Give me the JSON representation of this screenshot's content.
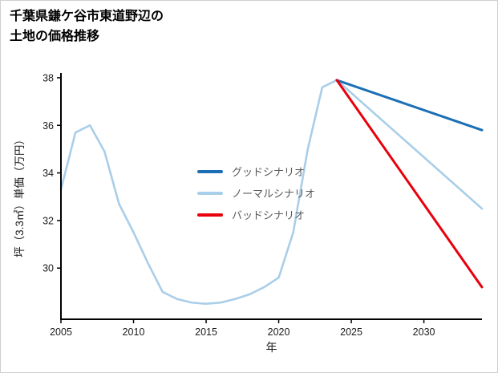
{
  "page": {
    "title_lines": [
      "千葉県鎌ケ谷市東道野辺の",
      "土地の価格推移"
    ]
  },
  "chart_data": {
    "type": "line",
    "title": "千葉県鎌ケ谷市東道野辺の土地の価格推移",
    "xlabel": "年",
    "ylabel": "坪（3.3㎡）単価（万円）",
    "xlim": [
      2005,
      2034
    ],
    "ylim": [
      27.85,
      38.2
    ],
    "xticks": [
      2005,
      2010,
      2015,
      2020,
      2025,
      2030
    ],
    "yticks": [
      30,
      32,
      34,
      36,
      38
    ],
    "grid": false,
    "legend_position": "center",
    "axis_color": "#000000",
    "tick_label_color": "#1a1a1a",
    "series": [
      {
        "name": "グッドシナリオ",
        "color": "#1c6fb5",
        "width": 3,
        "z": 2,
        "x": [
          2024,
          2034
        ],
        "y": [
          37.9,
          35.8
        ]
      },
      {
        "name": "ノーマルシナリオ",
        "color": "#a9cee9",
        "width": 2.6,
        "z": 1,
        "x": [
          2005,
          2006,
          2007,
          2008,
          2009,
          2010,
          2011,
          2012,
          2013,
          2014,
          2015,
          2016,
          2017,
          2018,
          2019,
          2020,
          2021,
          2022,
          2023,
          2024,
          2034
        ],
        "y": [
          33.3,
          35.7,
          36.0,
          34.9,
          32.7,
          31.5,
          30.2,
          29.0,
          28.7,
          28.55,
          28.5,
          28.55,
          28.7,
          28.9,
          29.2,
          29.6,
          31.5,
          35.0,
          37.6,
          37.9,
          32.5
        ]
      },
      {
        "name": "バッドシナリオ",
        "color": "#e8000b",
        "width": 3,
        "z": 3,
        "x": [
          2024,
          2034
        ],
        "y": [
          37.9,
          29.2
        ]
      }
    ]
  }
}
